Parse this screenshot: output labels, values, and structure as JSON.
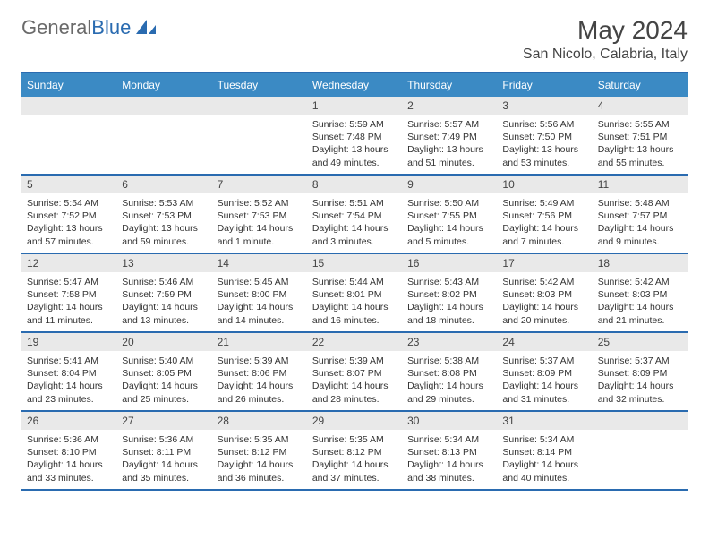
{
  "brand": {
    "text1": "General",
    "text2": "Blue",
    "text1_color": "#6a6a6a",
    "text2_color": "#2a6bb0"
  },
  "title": "May 2024",
  "location": "San Nicolo, Calabria, Italy",
  "colors": {
    "header_bar": "#3b8ac4",
    "header_text": "#ffffff",
    "row_border": "#2a6bb0",
    "daynum_bg": "#e9e9e9",
    "body_text": "#333333",
    "background": "#ffffff"
  },
  "day_names": [
    "Sunday",
    "Monday",
    "Tuesday",
    "Wednesday",
    "Thursday",
    "Friday",
    "Saturday"
  ],
  "weeks": [
    [
      {
        "num": "",
        "sunrise": "",
        "sunset": "",
        "daylight": ""
      },
      {
        "num": "",
        "sunrise": "",
        "sunset": "",
        "daylight": ""
      },
      {
        "num": "",
        "sunrise": "",
        "sunset": "",
        "daylight": ""
      },
      {
        "num": "1",
        "sunrise": "Sunrise: 5:59 AM",
        "sunset": "Sunset: 7:48 PM",
        "daylight": "Daylight: 13 hours and 49 minutes."
      },
      {
        "num": "2",
        "sunrise": "Sunrise: 5:57 AM",
        "sunset": "Sunset: 7:49 PM",
        "daylight": "Daylight: 13 hours and 51 minutes."
      },
      {
        "num": "3",
        "sunrise": "Sunrise: 5:56 AM",
        "sunset": "Sunset: 7:50 PM",
        "daylight": "Daylight: 13 hours and 53 minutes."
      },
      {
        "num": "4",
        "sunrise": "Sunrise: 5:55 AM",
        "sunset": "Sunset: 7:51 PM",
        "daylight": "Daylight: 13 hours and 55 minutes."
      }
    ],
    [
      {
        "num": "5",
        "sunrise": "Sunrise: 5:54 AM",
        "sunset": "Sunset: 7:52 PM",
        "daylight": "Daylight: 13 hours and 57 minutes."
      },
      {
        "num": "6",
        "sunrise": "Sunrise: 5:53 AM",
        "sunset": "Sunset: 7:53 PM",
        "daylight": "Daylight: 13 hours and 59 minutes."
      },
      {
        "num": "7",
        "sunrise": "Sunrise: 5:52 AM",
        "sunset": "Sunset: 7:53 PM",
        "daylight": "Daylight: 14 hours and 1 minute."
      },
      {
        "num": "8",
        "sunrise": "Sunrise: 5:51 AM",
        "sunset": "Sunset: 7:54 PM",
        "daylight": "Daylight: 14 hours and 3 minutes."
      },
      {
        "num": "9",
        "sunrise": "Sunrise: 5:50 AM",
        "sunset": "Sunset: 7:55 PM",
        "daylight": "Daylight: 14 hours and 5 minutes."
      },
      {
        "num": "10",
        "sunrise": "Sunrise: 5:49 AM",
        "sunset": "Sunset: 7:56 PM",
        "daylight": "Daylight: 14 hours and 7 minutes."
      },
      {
        "num": "11",
        "sunrise": "Sunrise: 5:48 AM",
        "sunset": "Sunset: 7:57 PM",
        "daylight": "Daylight: 14 hours and 9 minutes."
      }
    ],
    [
      {
        "num": "12",
        "sunrise": "Sunrise: 5:47 AM",
        "sunset": "Sunset: 7:58 PM",
        "daylight": "Daylight: 14 hours and 11 minutes."
      },
      {
        "num": "13",
        "sunrise": "Sunrise: 5:46 AM",
        "sunset": "Sunset: 7:59 PM",
        "daylight": "Daylight: 14 hours and 13 minutes."
      },
      {
        "num": "14",
        "sunrise": "Sunrise: 5:45 AM",
        "sunset": "Sunset: 8:00 PM",
        "daylight": "Daylight: 14 hours and 14 minutes."
      },
      {
        "num": "15",
        "sunrise": "Sunrise: 5:44 AM",
        "sunset": "Sunset: 8:01 PM",
        "daylight": "Daylight: 14 hours and 16 minutes."
      },
      {
        "num": "16",
        "sunrise": "Sunrise: 5:43 AM",
        "sunset": "Sunset: 8:02 PM",
        "daylight": "Daylight: 14 hours and 18 minutes."
      },
      {
        "num": "17",
        "sunrise": "Sunrise: 5:42 AM",
        "sunset": "Sunset: 8:03 PM",
        "daylight": "Daylight: 14 hours and 20 minutes."
      },
      {
        "num": "18",
        "sunrise": "Sunrise: 5:42 AM",
        "sunset": "Sunset: 8:03 PM",
        "daylight": "Daylight: 14 hours and 21 minutes."
      }
    ],
    [
      {
        "num": "19",
        "sunrise": "Sunrise: 5:41 AM",
        "sunset": "Sunset: 8:04 PM",
        "daylight": "Daylight: 14 hours and 23 minutes."
      },
      {
        "num": "20",
        "sunrise": "Sunrise: 5:40 AM",
        "sunset": "Sunset: 8:05 PM",
        "daylight": "Daylight: 14 hours and 25 minutes."
      },
      {
        "num": "21",
        "sunrise": "Sunrise: 5:39 AM",
        "sunset": "Sunset: 8:06 PM",
        "daylight": "Daylight: 14 hours and 26 minutes."
      },
      {
        "num": "22",
        "sunrise": "Sunrise: 5:39 AM",
        "sunset": "Sunset: 8:07 PM",
        "daylight": "Daylight: 14 hours and 28 minutes."
      },
      {
        "num": "23",
        "sunrise": "Sunrise: 5:38 AM",
        "sunset": "Sunset: 8:08 PM",
        "daylight": "Daylight: 14 hours and 29 minutes."
      },
      {
        "num": "24",
        "sunrise": "Sunrise: 5:37 AM",
        "sunset": "Sunset: 8:09 PM",
        "daylight": "Daylight: 14 hours and 31 minutes."
      },
      {
        "num": "25",
        "sunrise": "Sunrise: 5:37 AM",
        "sunset": "Sunset: 8:09 PM",
        "daylight": "Daylight: 14 hours and 32 minutes."
      }
    ],
    [
      {
        "num": "26",
        "sunrise": "Sunrise: 5:36 AM",
        "sunset": "Sunset: 8:10 PM",
        "daylight": "Daylight: 14 hours and 33 minutes."
      },
      {
        "num": "27",
        "sunrise": "Sunrise: 5:36 AM",
        "sunset": "Sunset: 8:11 PM",
        "daylight": "Daylight: 14 hours and 35 minutes."
      },
      {
        "num": "28",
        "sunrise": "Sunrise: 5:35 AM",
        "sunset": "Sunset: 8:12 PM",
        "daylight": "Daylight: 14 hours and 36 minutes."
      },
      {
        "num": "29",
        "sunrise": "Sunrise: 5:35 AM",
        "sunset": "Sunset: 8:12 PM",
        "daylight": "Daylight: 14 hours and 37 minutes."
      },
      {
        "num": "30",
        "sunrise": "Sunrise: 5:34 AM",
        "sunset": "Sunset: 8:13 PM",
        "daylight": "Daylight: 14 hours and 38 minutes."
      },
      {
        "num": "31",
        "sunrise": "Sunrise: 5:34 AM",
        "sunset": "Sunset: 8:14 PM",
        "daylight": "Daylight: 14 hours and 40 minutes."
      },
      {
        "num": "",
        "sunrise": "",
        "sunset": "",
        "daylight": ""
      }
    ]
  ]
}
